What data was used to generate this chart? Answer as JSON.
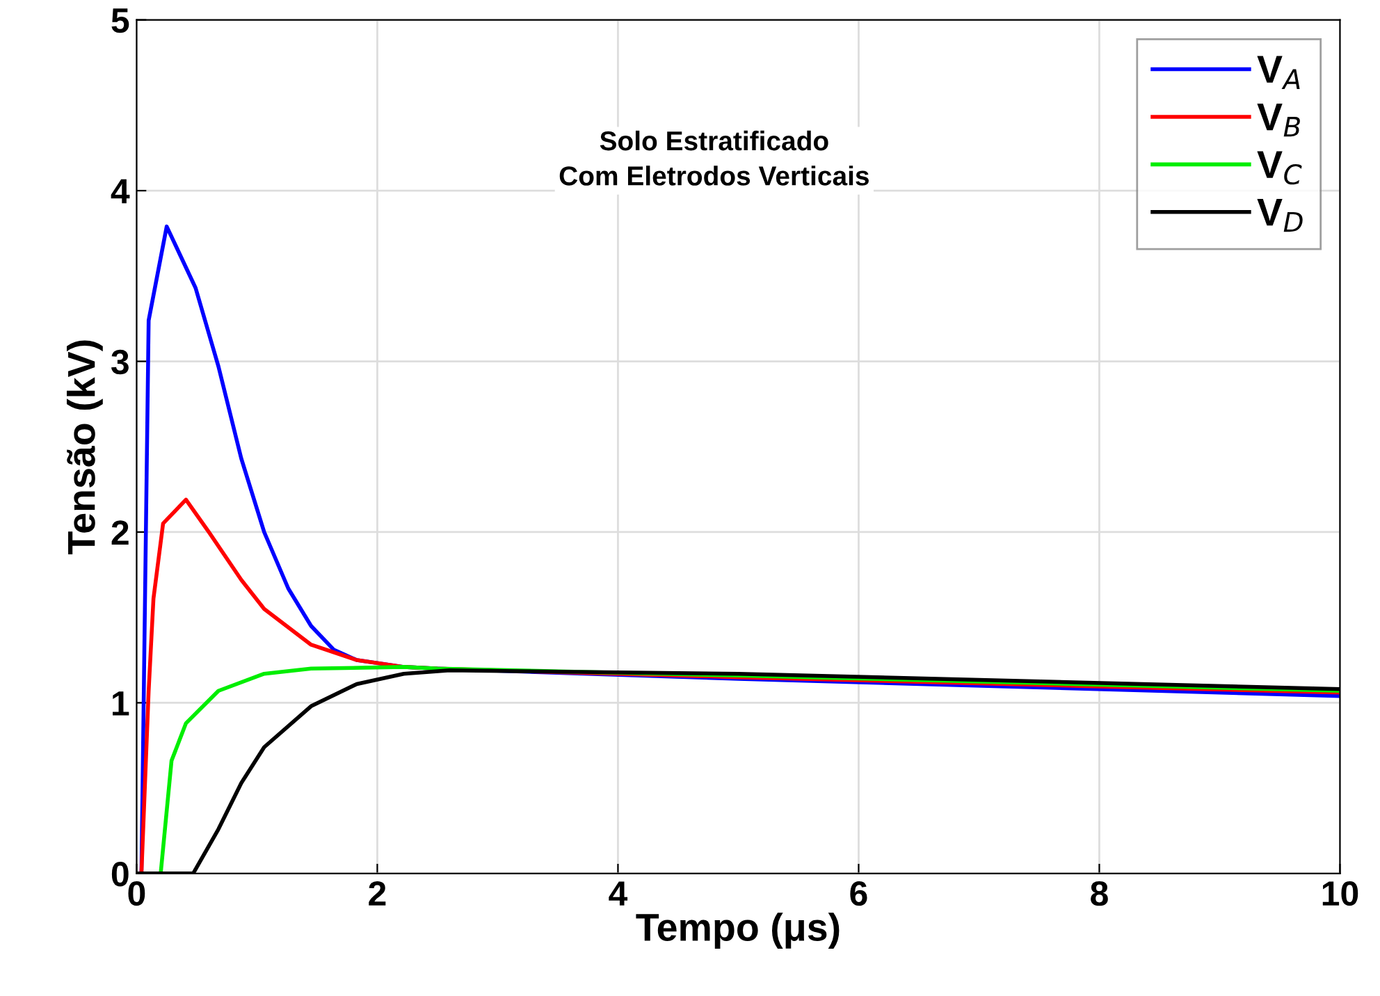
{
  "chart_data": {
    "type": "line",
    "xlabel": "Tempo (μs)",
    "ylabel": "Tensão (kV)",
    "annotations": [
      "Solo Estratificado\nCom Eletrodos Verticais"
    ],
    "xlim": [
      0,
      10
    ],
    "ylim": [
      0,
      5
    ],
    "xticks": [
      0,
      2,
      4,
      6,
      8,
      10
    ],
    "yticks": [
      0,
      1,
      2,
      3,
      4,
      5
    ],
    "grid": true,
    "legend": "top right",
    "marker": "none",
    "line_style": "solid",
    "series": [
      {
        "name": "V$_{A}$",
        "color": "#0000ff",
        "x": [
          0,
          0.04,
          0.1,
          0.25,
          0.49,
          0.68,
          0.87,
          1.06,
          1.26,
          1.45,
          1.64,
          1.83,
          2.22,
          2.5,
          5,
          10
        ],
        "values": [
          0,
          0,
          3.24,
          3.79,
          3.43,
          2.97,
          2.43,
          2.0,
          1.67,
          1.45,
          1.31,
          1.25,
          1.21,
          1.2,
          1.14,
          1.04
        ]
      },
      {
        "name": "V$_{B}$",
        "color": "#ff0000",
        "x": [
          0,
          0.04,
          0.1,
          0.14,
          0.22,
          0.41,
          0.6,
          0.87,
          1.06,
          1.45,
          1.83,
          2.22,
          2.5,
          5,
          10
        ],
        "values": [
          0,
          0,
          1.07,
          1.61,
          2.05,
          2.19,
          2.0,
          1.72,
          1.55,
          1.34,
          1.25,
          1.21,
          1.2,
          1.15,
          1.06
        ]
      },
      {
        "name": "V$_{C}$",
        "color": "#00ee00",
        "x": [
          0,
          0.2,
          0.29,
          0.41,
          0.68,
          1.06,
          1.45,
          2.22,
          2.5,
          5,
          10
        ],
        "values": [
          0,
          0,
          0.66,
          0.88,
          1.07,
          1.17,
          1.2,
          1.21,
          1.2,
          1.16,
          1.07
        ]
      },
      {
        "name": "V$_{D}$",
        "color": "#000000",
        "x": [
          0,
          0.47,
          0.68,
          0.87,
          1.06,
          1.45,
          1.83,
          2.22,
          2.6,
          5,
          10
        ],
        "values": [
          0,
          0,
          0.26,
          0.53,
          0.74,
          0.98,
          1.11,
          1.17,
          1.19,
          1.17,
          1.08
        ]
      }
    ]
  }
}
